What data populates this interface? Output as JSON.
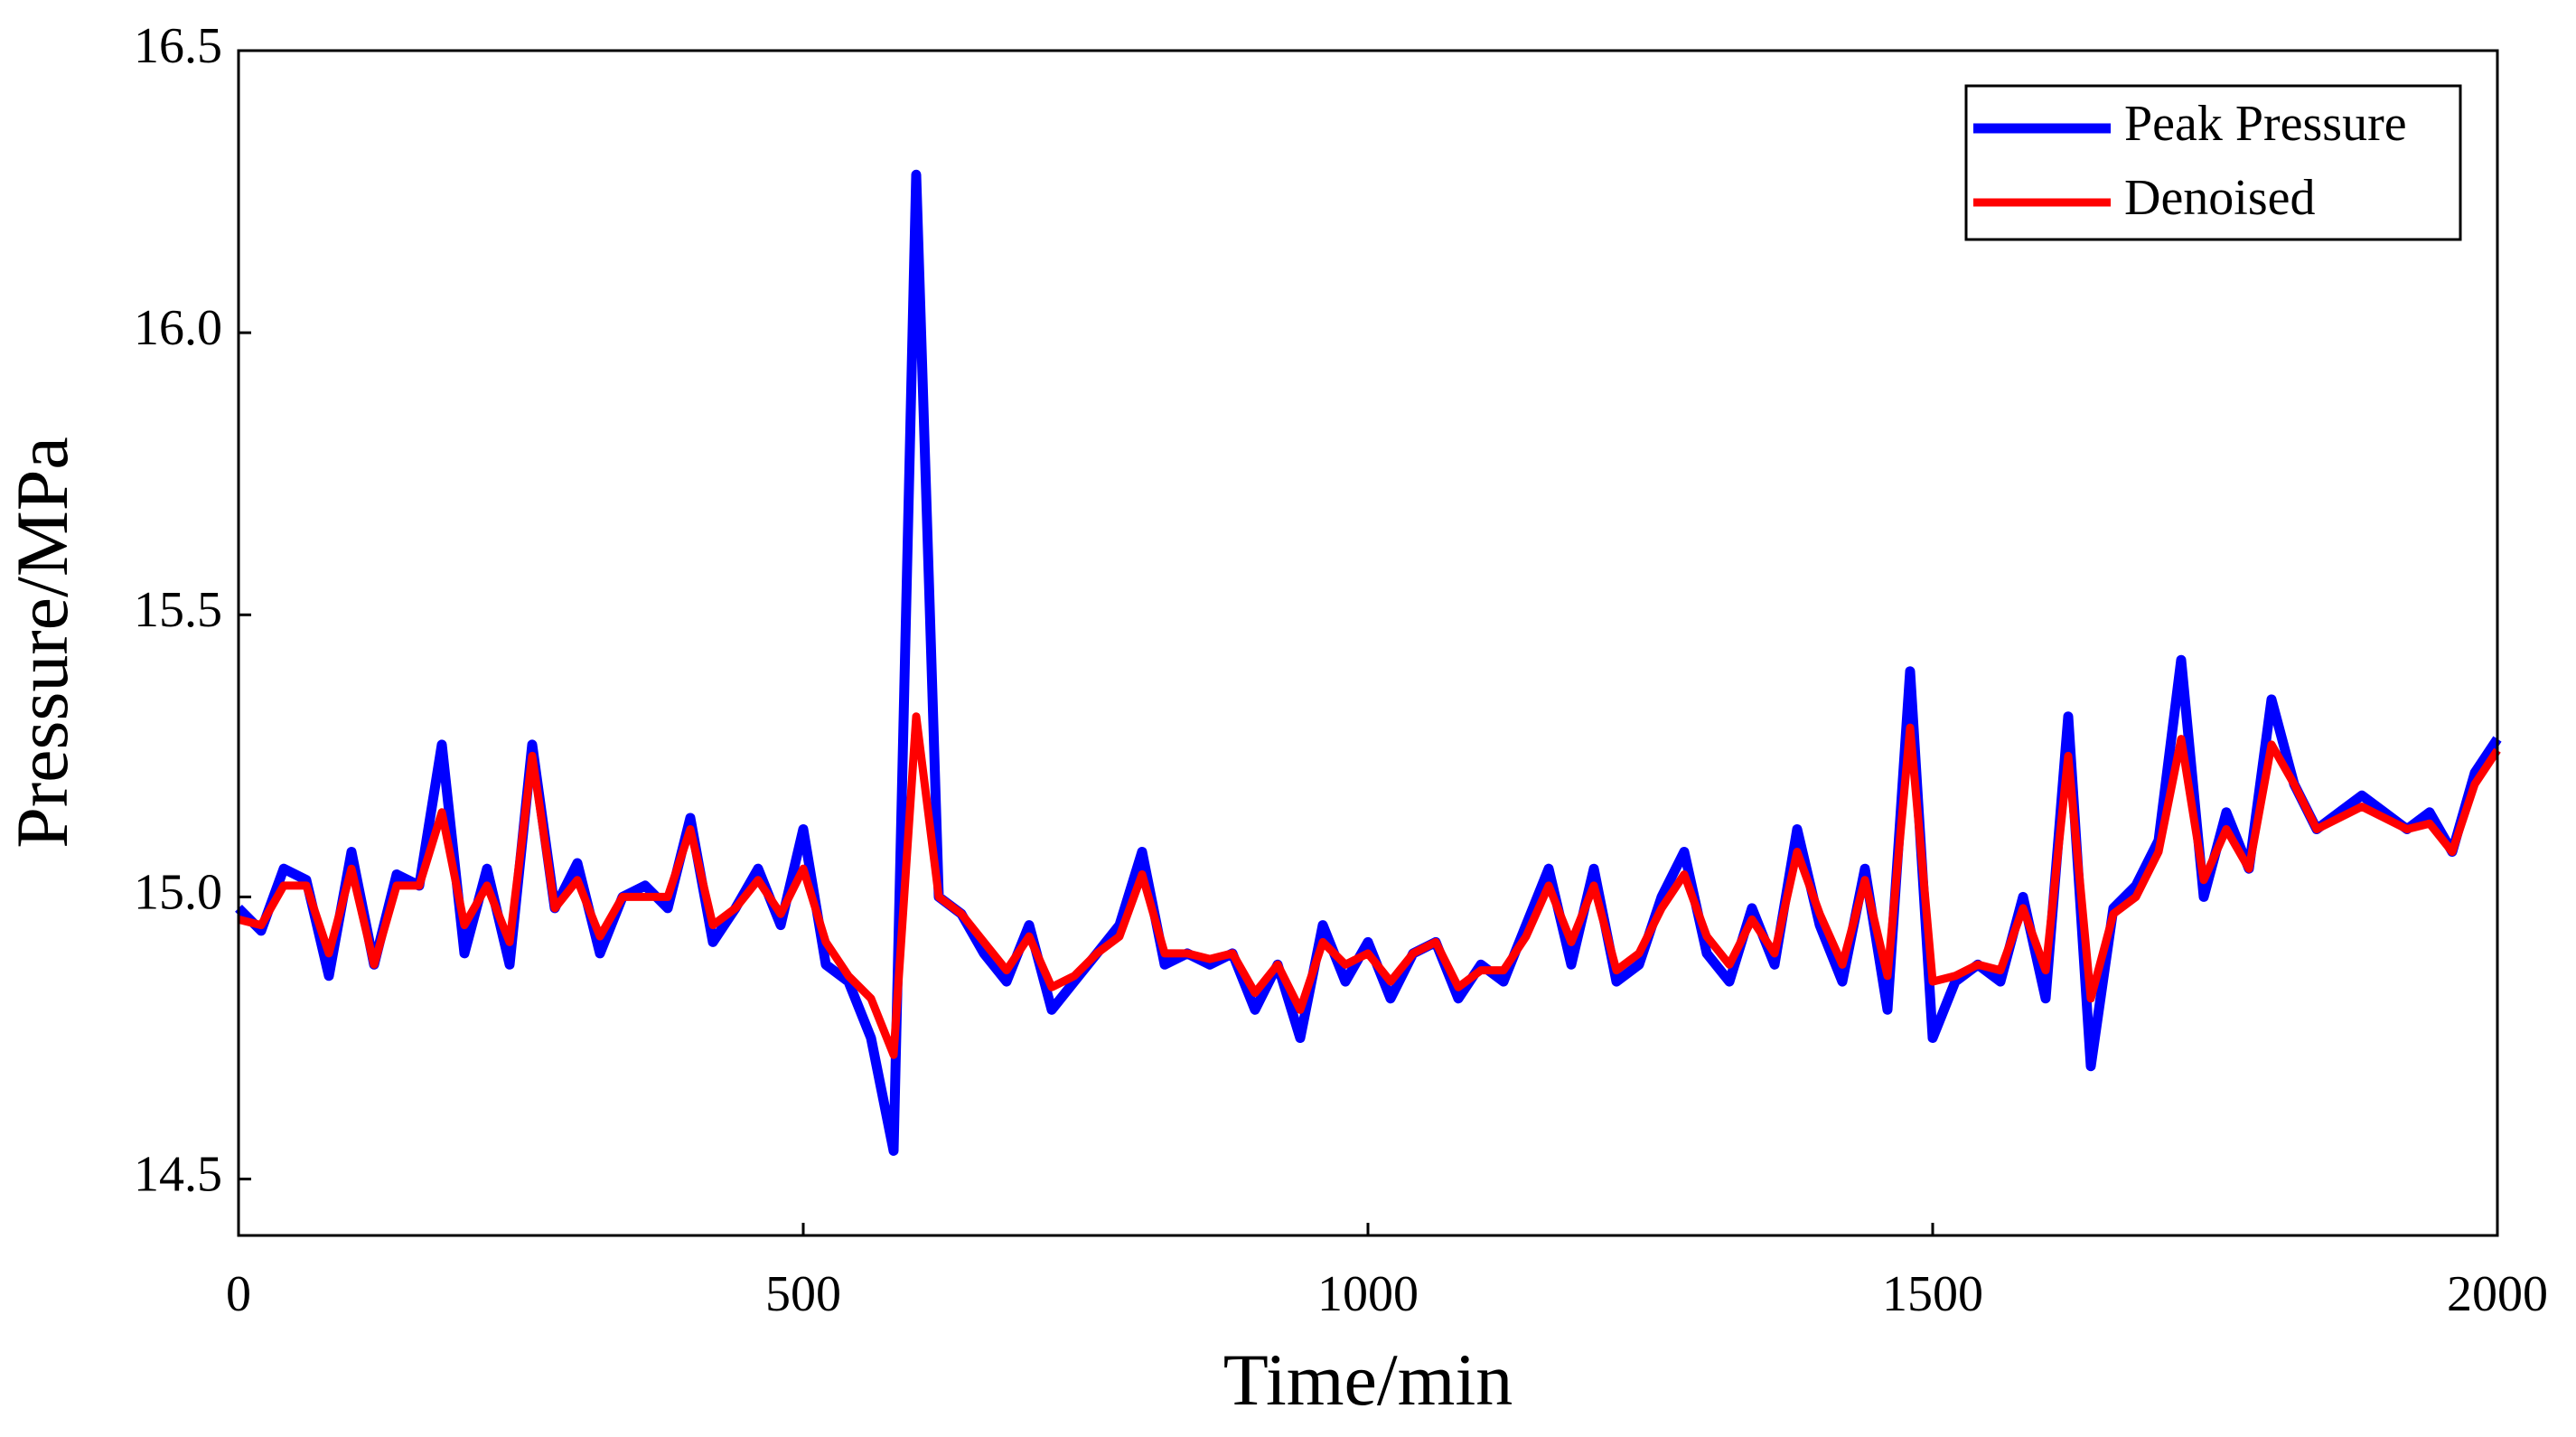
{
  "chart_data": {
    "type": "line",
    "x_label": "Time/min",
    "y_label": "Pressure/MPa",
    "xlim": [
      0,
      2000
    ],
    "xticks": [
      0,
      500,
      1000,
      1500,
      2000
    ],
    "ylim": [
      14.4,
      16.5
    ],
    "yticks": [
      14.5,
      {
        "value": 15,
        "label": "15.0"
      },
      15.5,
      {
        "value": 16,
        "label": "16.0"
      },
      16.5
    ],
    "legend": "upper-right",
    "x": [
      0,
      20,
      40,
      60,
      80,
      100,
      120,
      140,
      160,
      180,
      200,
      220,
      240,
      260,
      280,
      300,
      320,
      340,
      360,
      380,
      400,
      420,
      440,
      460,
      480,
      500,
      520,
      540,
      560,
      580,
      600,
      620,
      640,
      660,
      680,
      700,
      720,
      740,
      760,
      780,
      800,
      820,
      840,
      860,
      880,
      900,
      920,
      940,
      960,
      980,
      1000,
      1020,
      1040,
      1060,
      1080,
      1100,
      1120,
      1140,
      1160,
      1180,
      1200,
      1220,
      1240,
      1260,
      1280,
      1300,
      1320,
      1340,
      1360,
      1380,
      1400,
      1420,
      1440,
      1460,
      1480,
      1500,
      1520,
      1540,
      1560,
      1580,
      1600,
      1620,
      1640,
      1660,
      1680,
      1700,
      1720,
      1740,
      1760,
      1780,
      1800,
      1820,
      1840,
      1860,
      1880,
      1900,
      1920,
      1940,
      1960,
      1980,
      2000
    ],
    "series": [
      {
        "name": "Peak Pressure",
        "color": "#0000ff",
        "values": [
          14.98,
          14.94,
          15.05,
          15.03,
          14.86,
          15.08,
          14.88,
          15.04,
          15.02,
          15.27,
          14.9,
          15.05,
          14.88,
          15.27,
          14.98,
          15.06,
          14.9,
          15.0,
          15.02,
          14.98,
          15.14,
          14.92,
          14.98,
          15.05,
          14.95,
          15.12,
          14.88,
          14.85,
          14.75,
          14.55,
          16.28,
          15.0,
          14.97,
          14.9,
          14.85,
          14.95,
          14.8,
          14.85,
          14.9,
          14.95,
          15.08,
          14.88,
          14.9,
          14.88,
          14.9,
          14.8,
          14.88,
          14.75,
          14.95,
          14.85,
          14.92,
          14.82,
          14.9,
          14.92,
          14.82,
          14.88,
          14.85,
          14.95,
          15.05,
          14.88,
          15.05,
          14.85,
          14.88,
          15.0,
          15.08,
          14.9,
          14.85,
          14.98,
          14.88,
          15.12,
          14.95,
          14.85,
          15.05,
          14.8,
          15.4,
          14.75,
          14.85,
          14.88,
          14.85,
          15.0,
          14.82,
          15.32,
          14.7,
          14.98,
          15.02,
          15.1,
          15.42,
          15.0,
          15.15,
          15.05,
          15.35,
          15.2,
          15.12,
          15.15,
          15.18,
          15.15,
          15.12,
          15.15,
          15.08,
          15.22,
          15.28
        ]
      },
      {
        "name": "Denoised",
        "color": "#ff0000",
        "values": [
          14.96,
          14.95,
          15.02,
          15.02,
          14.9,
          15.05,
          14.88,
          15.02,
          15.02,
          15.15,
          14.95,
          15.02,
          14.92,
          15.25,
          14.98,
          15.03,
          14.93,
          15.0,
          15.0,
          15.0,
          15.12,
          14.95,
          14.98,
          15.03,
          14.97,
          15.05,
          14.92,
          14.86,
          14.82,
          14.72,
          15.32,
          15.0,
          14.97,
          14.92,
          14.87,
          14.93,
          14.84,
          14.86,
          14.9,
          14.93,
          15.04,
          14.9,
          14.9,
          14.89,
          14.9,
          14.83,
          14.88,
          14.8,
          14.92,
          14.88,
          14.9,
          14.85,
          14.9,
          14.92,
          14.84,
          14.87,
          14.87,
          14.93,
          15.02,
          14.92,
          15.02,
          14.87,
          14.9,
          14.98,
          15.04,
          14.93,
          14.88,
          14.96,
          14.9,
          15.08,
          14.97,
          14.88,
          15.03,
          14.86,
          15.3,
          14.85,
          14.86,
          14.88,
          14.87,
          14.98,
          14.87,
          15.25,
          14.82,
          14.97,
          15.0,
          15.08,
          15.28,
          15.03,
          15.12,
          15.05,
          15.27,
          15.2,
          15.12,
          15.14,
          15.16,
          15.14,
          15.12,
          15.13,
          15.08,
          15.2,
          15.26
        ]
      }
    ]
  }
}
